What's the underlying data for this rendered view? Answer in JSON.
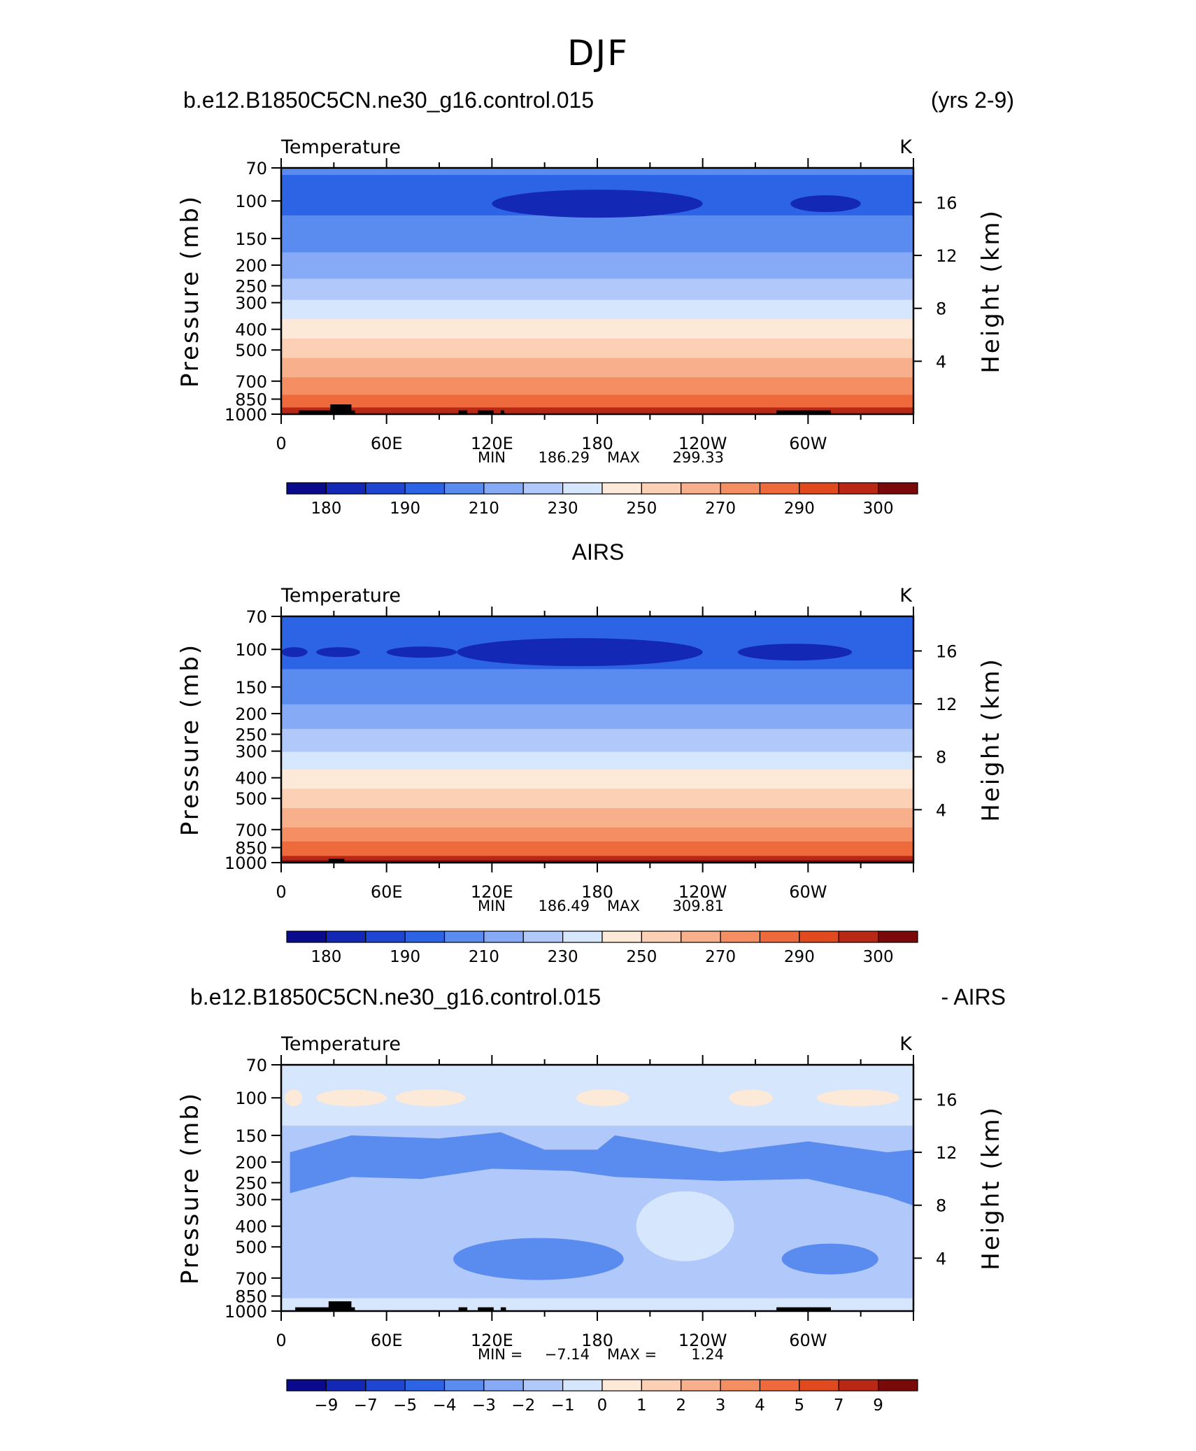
{
  "page_title": "DJF",
  "chart_data": [
    {
      "type": "heatmap",
      "header_left": "b.e12.B1850C5CN.ne30_g16.control.015",
      "header_right": "(yrs 2-9)",
      "subtitle": "Temperature",
      "units": "K",
      "ylabel": "Pressure (mb)",
      "ylabel_right": "Height (km)",
      "x_ticks": [
        "0",
        "60E",
        "120E",
        "180",
        "120W",
        "60W"
      ],
      "x_range": [
        0,
        360
      ],
      "y_ticks": [
        "70",
        "100",
        "150",
        "200",
        "250",
        "300",
        "400",
        "500",
        "700",
        "850",
        "1000"
      ],
      "y_range": [
        70,
        1000
      ],
      "y_scale": "log",
      "height_ticks": [
        "16",
        "12",
        "8",
        "4"
      ],
      "min_label": "MIN",
      "min_value": "186.29",
      "max_label": "MAX",
      "max_value": "299.33",
      "colorbar_labels": [
        "180",
        "190",
        "210",
        "230",
        "250",
        "270",
        "290",
        "300"
      ],
      "levels_k": [
        {
          "p": 70,
          "t": 201
        },
        {
          "p": 100,
          "t": 196
        },
        {
          "p": 150,
          "t": 206
        },
        {
          "p": 200,
          "t": 214
        },
        {
          "p": 250,
          "t": 223
        },
        {
          "p": 300,
          "t": 231
        },
        {
          "p": 400,
          "t": 245
        },
        {
          "p": 500,
          "t": 256
        },
        {
          "p": 700,
          "t": 272
        },
        {
          "p": 850,
          "t": 283
        },
        {
          "p": 1000,
          "t": 291
        }
      ]
    },
    {
      "type": "heatmap",
      "header_center": "AIRS",
      "subtitle": "Temperature",
      "units": "K",
      "ylabel": "Pressure (mb)",
      "ylabel_right": "Height (km)",
      "x_ticks": [
        "0",
        "60E",
        "120E",
        "180",
        "120W",
        "60W"
      ],
      "x_range": [
        0,
        360
      ],
      "y_ticks": [
        "70",
        "100",
        "150",
        "200",
        "250",
        "300",
        "400",
        "500",
        "700",
        "850",
        "1000"
      ],
      "y_range": [
        70,
        1000
      ],
      "y_scale": "log",
      "height_ticks": [
        "16",
        "12",
        "8",
        "4"
      ],
      "min_label": "MIN",
      "min_value": "186.49",
      "max_label": "MAX",
      "max_value": "309.81",
      "colorbar_labels": [
        "180",
        "190",
        "210",
        "230",
        "250",
        "270",
        "290",
        "300"
      ],
      "levels_k": [
        {
          "p": 70,
          "t": 200
        },
        {
          "p": 100,
          "t": 194
        },
        {
          "p": 150,
          "t": 205
        },
        {
          "p": 200,
          "t": 213
        },
        {
          "p": 250,
          "t": 222
        },
        {
          "p": 300,
          "t": 230
        },
        {
          "p": 400,
          "t": 244
        },
        {
          "p": 500,
          "t": 255
        },
        {
          "p": 700,
          "t": 271
        },
        {
          "p": 850,
          "t": 284
        },
        {
          "p": 1000,
          "t": 294
        }
      ]
    },
    {
      "type": "heatmap",
      "header_left": "b.e12.B1850C5CN.ne30_g16.control.015",
      "header_right": "- AIRS",
      "subtitle": "Temperature",
      "units": "K",
      "ylabel": "Pressure (mb)",
      "ylabel_right": "Height (km)",
      "x_ticks": [
        "0",
        "60E",
        "120E",
        "180",
        "120W",
        "60W"
      ],
      "x_range": [
        0,
        360
      ],
      "y_ticks": [
        "70",
        "100",
        "150",
        "200",
        "250",
        "300",
        "400",
        "500",
        "700",
        "850",
        "1000"
      ],
      "y_range": [
        70,
        1000
      ],
      "y_scale": "log",
      "height_ticks": [
        "16",
        "12",
        "8",
        "4"
      ],
      "min_label": "MIN =",
      "min_value": "−7.14",
      "max_label": "MAX =",
      "max_value": "1.24",
      "colorbar_labels": [
        "−9",
        "−7",
        "−5",
        "−4",
        "−3",
        "−2",
        "−1",
        "0",
        "1",
        "2",
        "3",
        "4",
        "5",
        "7",
        "9"
      ]
    }
  ],
  "colors": {
    "colorbar_16": [
      "#0a0a8c",
      "#1328b4",
      "#1e46d2",
      "#2d64e6",
      "#5a8cf0",
      "#86aaf5",
      "#b0c8fa",
      "#d6e6fc",
      "#fde9d8",
      "#fbd0b4",
      "#f8b08c",
      "#f58e62",
      "#ee6a3c",
      "#e04a1e",
      "#b82814",
      "#7a0a0a"
    ],
    "terrain": "#000000"
  }
}
